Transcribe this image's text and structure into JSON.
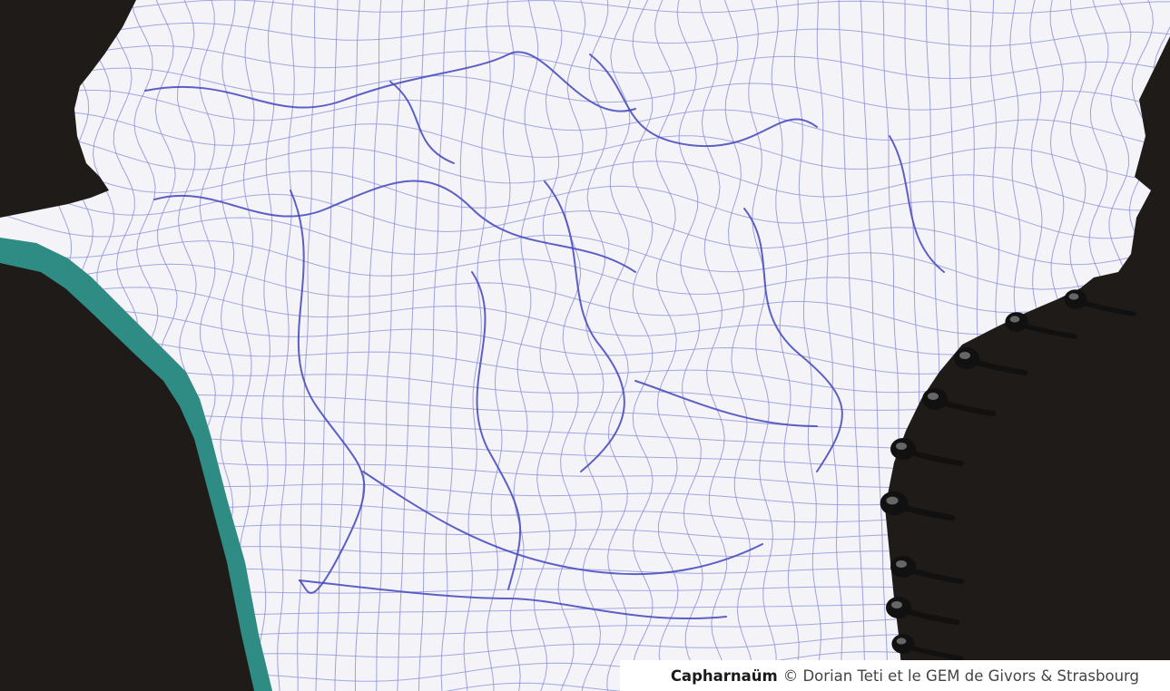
{
  "artwork": {
    "background_color": "#1f1b19",
    "paper_color": "#f4f4f8",
    "grid_color": "#8f92d9",
    "ink_color": "#4d4fbf",
    "edge_color": "#2f8c84",
    "spiral_color": "#111111"
  },
  "caption": {
    "title": "Capharnaüm",
    "credit": "© Dorian Teti et le GEM de Givors & Strasbourg"
  }
}
